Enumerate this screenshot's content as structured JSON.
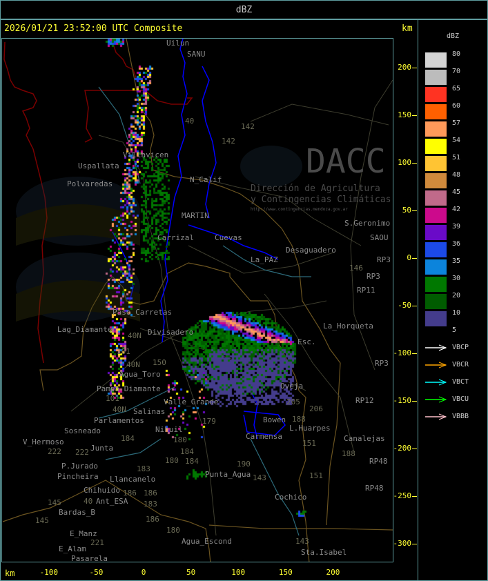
{
  "top_bar": {
    "title": "dBZ"
  },
  "header": {
    "timestamp_product": "2026/01/21 23:52:00 UTC Composite",
    "unit_top": "km",
    "unit_bottom": "km"
  },
  "axes": {
    "y_ticks_km": [
      "200",
      "150",
      "100",
      "50",
      "0",
      "-50",
      "-100",
      "-150",
      "-200",
      "-250",
      "-300"
    ],
    "x_ticks_km": [
      "-100",
      "-50",
      "0",
      "50",
      "100",
      "150",
      "200"
    ]
  },
  "legend": {
    "title": "dBZ",
    "scale": [
      {
        "label": "80",
        "color": "#d4d4d4"
      },
      {
        "label": "70",
        "color": "#bcbcbc"
      },
      {
        "label": "65",
        "color": "#ff3322"
      },
      {
        "label": "60",
        "color": "#ff6000"
      },
      {
        "label": "57",
        "color": "#ff9a5a"
      },
      {
        "label": "54",
        "color": "#ffff00"
      },
      {
        "label": "51",
        "color": "#ffc433"
      },
      {
        "label": "48",
        "color": "#d08a3c"
      },
      {
        "label": "45",
        "color": "#c06a8a"
      },
      {
        "label": "42",
        "color": "#cc0a8c"
      },
      {
        "label": "39",
        "color": "#6a0ac8"
      },
      {
        "label": "36",
        "color": "#1c4ae8"
      },
      {
        "label": "35",
        "color": "#0c84dc"
      },
      {
        "label": "30",
        "color": "#007800"
      },
      {
        "label": "20",
        "color": "#005c00"
      },
      {
        "label": "10",
        "color": "#443c8c"
      },
      {
        "label": "5",
        "color": ""
      }
    ],
    "radars": [
      {
        "label": "VBCP",
        "color": "#ffffff"
      },
      {
        "label": "VBCR",
        "color": "#ffa500"
      },
      {
        "label": "VBCT",
        "color": "#00ffff"
      },
      {
        "label": "VBCU",
        "color": "#00ff00"
      },
      {
        "label": "VBBB",
        "color": "#ffc0cb"
      }
    ]
  },
  "watermark": {
    "brand": "DACC",
    "line1": "Dirección de Agricultura",
    "line2": "y Contingencias Climáticas",
    "url": "http://www.contingencias.mendoza.gov.ar"
  },
  "places": [
    "Uilun",
    "SANU",
    "Villavicen",
    "Uspallata",
    "Polvaredas",
    "N_Calif",
    "MARTIN",
    "Carrizal",
    "Cuevas",
    "La_PAZ",
    "Desaguadero",
    "S.Geronimo",
    "SAOU",
    "RP3",
    "RP3",
    "RP11",
    "Paso_Carretas",
    "Lag_Diamante",
    "Divisadero",
    "La_Horqueta",
    "Esc.",
    "Agua_Toro",
    "Pampa_Diamante",
    "Valle_Grande",
    "Salinas",
    "Parlamentos",
    "Sosneado",
    "Nihuil",
    "V_Hermoso",
    "Junta",
    "P.Jurado",
    "Pincheira",
    "Llancanelo",
    "Chihuido",
    "Ant_ESA",
    "Bardas_B",
    "E_Manz",
    "E_Alam",
    "Pasarela",
    "Agua_Escond",
    "Punta_Agua",
    "Cochico",
    "Sta.Isabel",
    "L.Huarpes",
    "Carmensa",
    "Bowen",
    "Oveja",
    "Canalejas",
    "RP12",
    "RP48",
    "RP48",
    "RP3"
  ],
  "routes": [
    "40",
    "142",
    "142",
    "146",
    "40N",
    "101",
    "150",
    "40N",
    "101",
    "40N",
    "222",
    "222",
    "184",
    "184",
    "180",
    "184",
    "183",
    "186",
    "186",
    "183",
    "145",
    "145",
    "40",
    "221",
    "180",
    "186",
    "180",
    "179",
    "190",
    "143",
    "143",
    "151",
    "151",
    "205",
    "206",
    "188",
    "188"
  ],
  "colors": {
    "frame": "#5f9ea0",
    "axis_text": "#ffff33",
    "rivers": "#0000ff",
    "province_border": "#6b5420",
    "country_border": "#7a0000"
  }
}
